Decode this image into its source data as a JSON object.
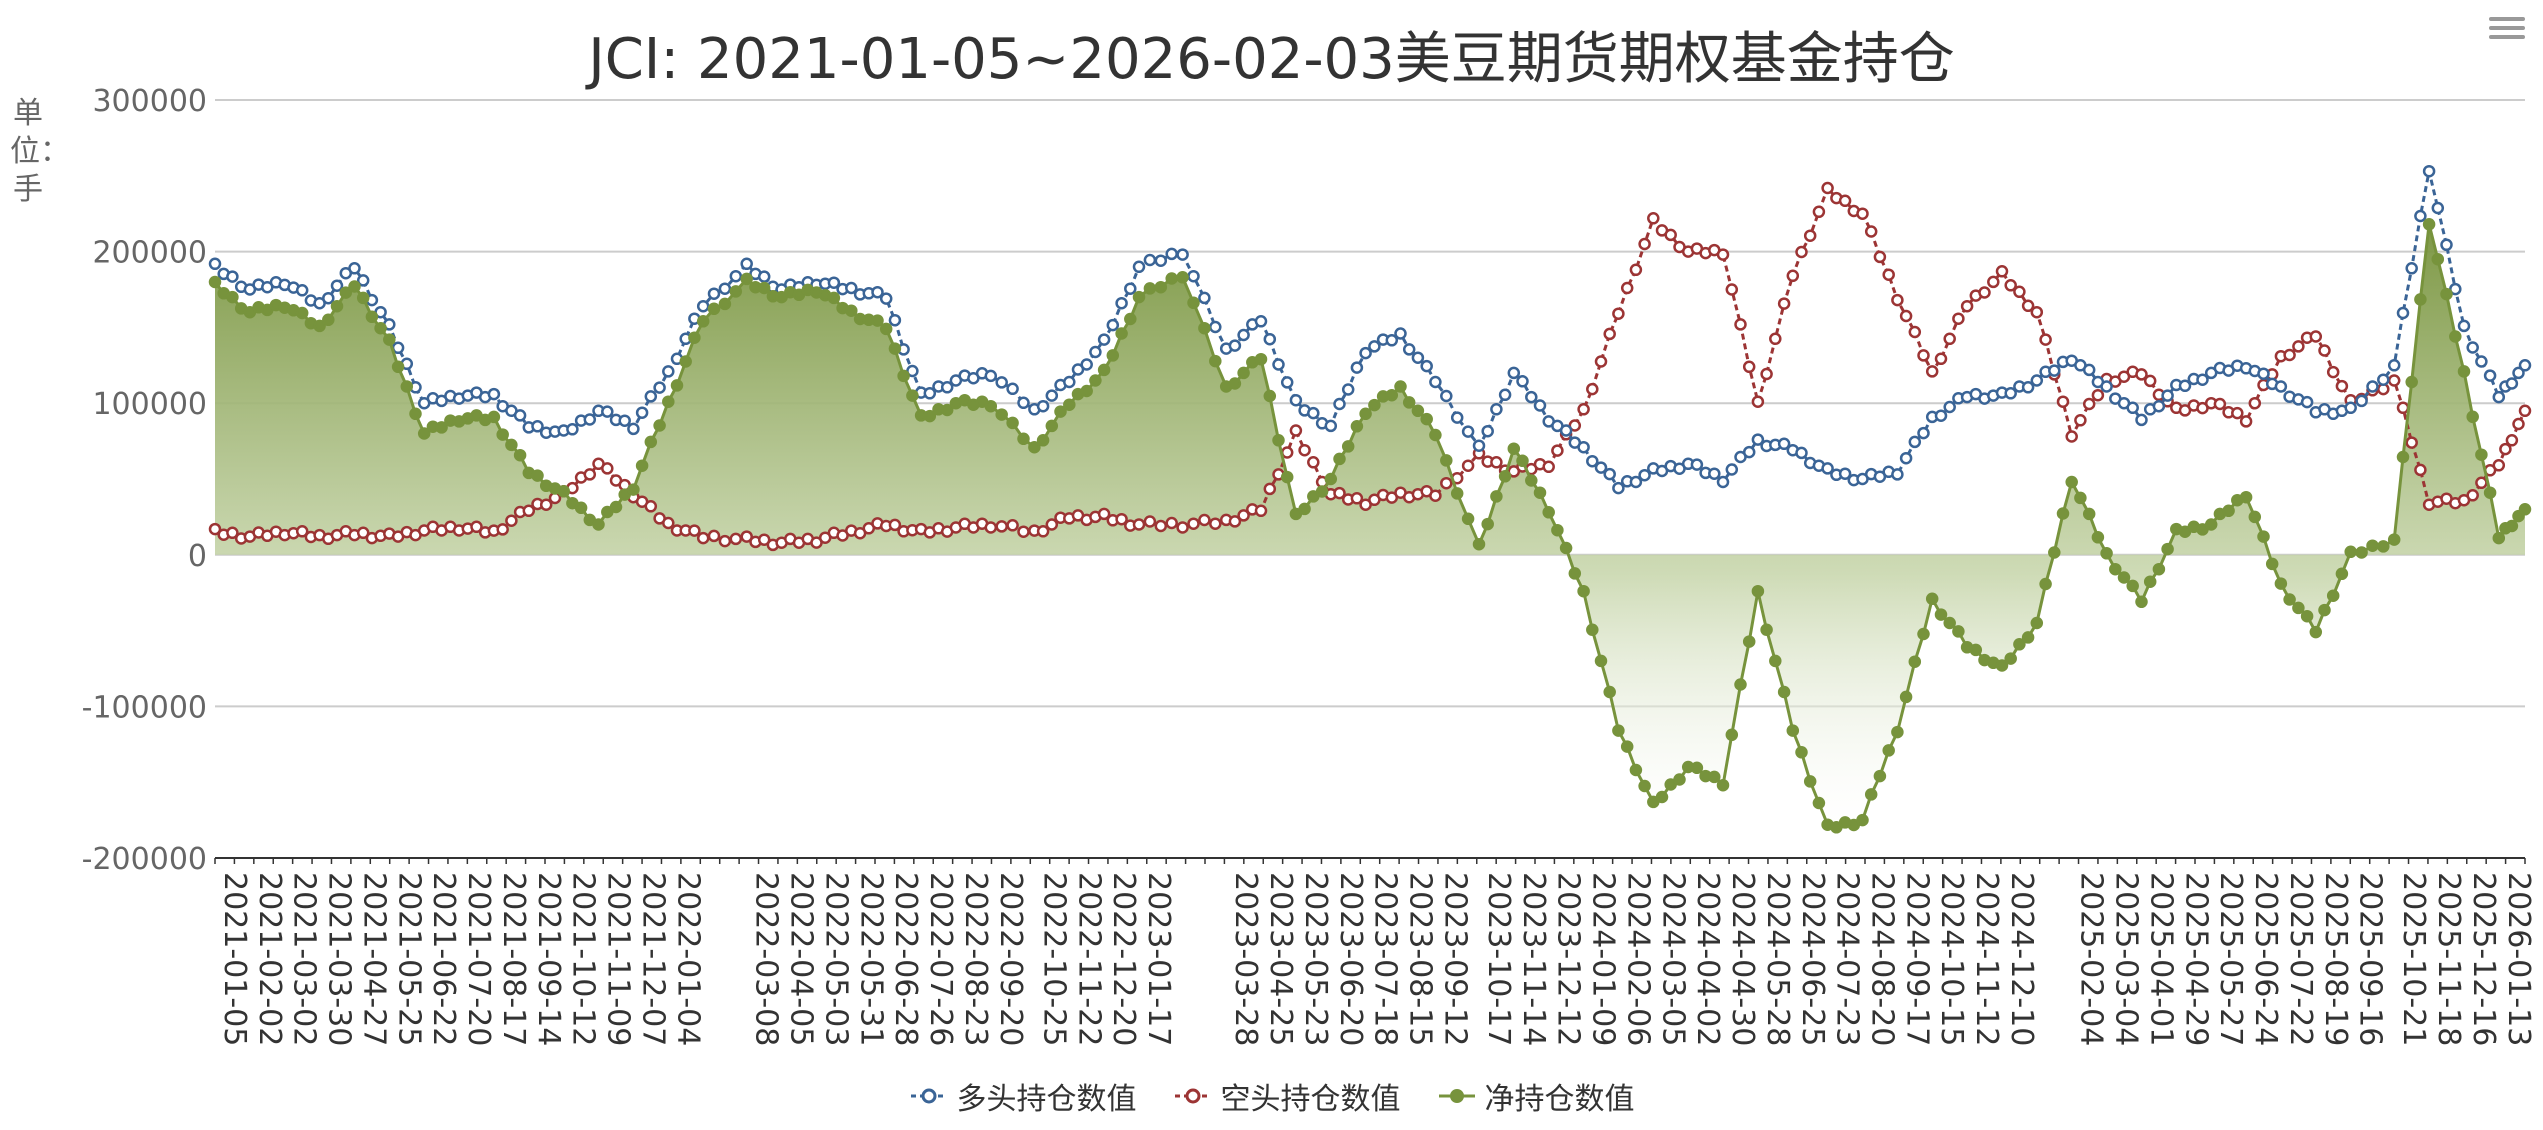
{
  "title": "JCI: 2021-01-05~2026-02-03美豆期货期权基金持仓",
  "y_unit_label": "单位：手",
  "colors": {
    "long": "#3a6496",
    "short": "#9c3434",
    "net": "#77933c",
    "grid": "#cccccc",
    "axis": "#333333",
    "text": "#666666"
  },
  "icons": {
    "menu": "hamburger-menu-icon"
  },
  "chart_data": {
    "type": "line",
    "title": "JCI: 2021-01-05~2026-02-03美豆期货期权基金持仓",
    "ylabel": "单位：手",
    "ylim": [
      -200000,
      300000
    ],
    "yticks": [
      300000,
      200000,
      100000,
      0,
      -100000,
      -200000
    ],
    "ytick_labels": [
      "300000",
      "200000",
      "100000",
      "0",
      "-100000",
      "-200000"
    ],
    "x_range": [
      "2021-01-05",
      "2026-02-03"
    ],
    "x_tick_labels": [
      "2021-01-05",
      "2021-02-02",
      "2021-03-02",
      "2021-03-30",
      "2021-04-27",
      "2021-05-25",
      "2021-06-22",
      "2021-07-20",
      "2021-08-17",
      "2021-09-14",
      "2021-10-12",
      "2021-11-09",
      "2021-12-07",
      "2022-01-04",
      "2022-03-08",
      "2022-04-05",
      "2022-05-03",
      "2022-05-31",
      "2022-06-28",
      "2022-07-26",
      "2022-08-23",
      "2022-09-20",
      "2022-10-25",
      "2022-11-22",
      "2022-12-20",
      "2023-01-17",
      "2023-03-28",
      "2023-04-25",
      "2023-05-23",
      "2023-06-20",
      "2023-07-18",
      "2023-08-15",
      "2023-09-12",
      "2023-10-17",
      "2023-11-14",
      "2023-12-12",
      "2024-01-09",
      "2024-02-06",
      "2024-03-05",
      "2024-04-02",
      "2024-04-30",
      "2024-05-28",
      "2024-06-25",
      "2024-07-23",
      "2024-08-20",
      "2024-09-17",
      "2024-10-15",
      "2024-11-12",
      "2024-12-10",
      "2025-02-04",
      "2025-03-04",
      "2025-04-01",
      "2025-04-29",
      "2025-05-27",
      "2025-06-24",
      "2025-07-22",
      "2025-08-19",
      "2025-09-16",
      "2025-10-21",
      "2025-11-18",
      "2025-12-16",
      "2026-01-13"
    ],
    "series": [
      {
        "name": "多头持仓数值",
        "key": "long",
        "points": [
          [
            "2021-01-05",
            190000
          ],
          [
            "2021-02-02",
            175000
          ],
          [
            "2021-03-02",
            180000
          ],
          [
            "2021-03-30",
            165000
          ],
          [
            "2021-04-27",
            190000
          ],
          [
            "2021-05-25",
            150000
          ],
          [
            "2021-06-22",
            100000
          ],
          [
            "2021-07-20",
            105000
          ],
          [
            "2021-08-17",
            105000
          ],
          [
            "2021-09-14",
            85000
          ],
          [
            "2021-10-12",
            80000
          ],
          [
            "2021-11-09",
            95000
          ],
          [
            "2021-12-07",
            85000
          ],
          [
            "2022-01-04",
            120000
          ],
          [
            "2022-02-01",
            165000
          ],
          [
            "2022-03-08",
            190000
          ],
          [
            "2022-04-05",
            175000
          ],
          [
            "2022-05-03",
            180000
          ],
          [
            "2022-05-31",
            175000
          ],
          [
            "2022-06-28",
            170000
          ],
          [
            "2022-07-26",
            105000
          ],
          [
            "2022-08-23",
            115000
          ],
          [
            "2022-09-20",
            120000
          ],
          [
            "2022-10-25",
            95000
          ],
          [
            "2022-11-22",
            115000
          ],
          [
            "2022-12-20",
            140000
          ],
          [
            "2023-01-17",
            190000
          ],
          [
            "2023-02-21",
            200000
          ],
          [
            "2023-03-28",
            135000
          ],
          [
            "2023-04-25",
            155000
          ],
          [
            "2023-05-23",
            100000
          ],
          [
            "2023-06-20",
            85000
          ],
          [
            "2023-07-18",
            135000
          ],
          [
            "2023-08-15",
            145000
          ],
          [
            "2023-09-12",
            115000
          ],
          [
            "2023-10-17",
            70000
          ],
          [
            "2023-11-14",
            120000
          ],
          [
            "2023-12-12",
            90000
          ],
          [
            "2024-01-09",
            70000
          ],
          [
            "2024-02-06",
            45000
          ],
          [
            "2024-03-05",
            55000
          ],
          [
            "2024-04-02",
            60000
          ],
          [
            "2024-04-30",
            50000
          ],
          [
            "2024-05-28",
            75000
          ],
          [
            "2024-06-25",
            70000
          ],
          [
            "2024-07-23",
            55000
          ],
          [
            "2024-08-20",
            50000
          ],
          [
            "2024-09-17",
            55000
          ],
          [
            "2024-10-15",
            90000
          ],
          [
            "2024-11-12",
            105000
          ],
          [
            "2024-12-10",
            105000
          ],
          [
            "2025-01-07",
            115000
          ],
          [
            "2025-02-04",
            130000
          ],
          [
            "2025-03-04",
            110000
          ],
          [
            "2025-04-01",
            90000
          ],
          [
            "2025-04-29",
            110000
          ],
          [
            "2025-05-27",
            120000
          ],
          [
            "2025-06-24",
            125000
          ],
          [
            "2025-07-22",
            110000
          ],
          [
            "2025-08-19",
            95000
          ],
          [
            "2025-09-16",
            95000
          ],
          [
            "2025-10-21",
            125000
          ],
          [
            "2025-11-18",
            255000
          ],
          [
            "2025-12-16",
            150000
          ],
          [
            "2026-01-13",
            105000
          ],
          [
            "2026-02-03",
            125000
          ]
        ]
      },
      {
        "name": "空头持仓数值",
        "key": "short",
        "points": [
          [
            "2021-01-05",
            15000
          ],
          [
            "2021-02-02",
            12000
          ],
          [
            "2021-03-02",
            15000
          ],
          [
            "2021-03-30",
            12000
          ],
          [
            "2021-04-27",
            14000
          ],
          [
            "2021-05-25",
            12000
          ],
          [
            "2021-06-22",
            16000
          ],
          [
            "2021-07-20",
            18000
          ],
          [
            "2021-08-17",
            15000
          ],
          [
            "2021-09-14",
            30000
          ],
          [
            "2021-10-12",
            40000
          ],
          [
            "2021-11-09",
            60000
          ],
          [
            "2021-12-07",
            40000
          ],
          [
            "2022-01-04",
            20000
          ],
          [
            "2022-02-01",
            12000
          ],
          [
            "2022-03-08",
            10000
          ],
          [
            "2022-04-05",
            8000
          ],
          [
            "2022-05-03",
            10000
          ],
          [
            "2022-05-31",
            15000
          ],
          [
            "2022-06-28",
            20000
          ],
          [
            "2022-07-26",
            15000
          ],
          [
            "2022-08-23",
            18000
          ],
          [
            "2022-09-20",
            20000
          ],
          [
            "2022-10-25",
            15000
          ],
          [
            "2022-11-22",
            25000
          ],
          [
            "2022-12-20",
            25000
          ],
          [
            "2023-01-17",
            20000
          ],
          [
            "2023-02-21",
            20000
          ],
          [
            "2023-03-28",
            22000
          ],
          [
            "2023-04-25",
            30000
          ],
          [
            "2023-05-23",
            80000
          ],
          [
            "2023-06-20",
            40000
          ],
          [
            "2023-07-18",
            35000
          ],
          [
            "2023-08-15",
            40000
          ],
          [
            "2023-09-12",
            40000
          ],
          [
            "2023-10-17",
            65000
          ],
          [
            "2023-11-14",
            55000
          ],
          [
            "2023-12-12",
            60000
          ],
          [
            "2024-01-09",
            95000
          ],
          [
            "2024-02-06",
            160000
          ],
          [
            "2024-03-05",
            220000
          ],
          [
            "2024-04-02",
            200000
          ],
          [
            "2024-04-30",
            200000
          ],
          [
            "2024-05-28",
            100000
          ],
          [
            "2024-06-25",
            185000
          ],
          [
            "2024-07-23",
            240000
          ],
          [
            "2024-08-20",
            225000
          ],
          [
            "2024-09-17",
            170000
          ],
          [
            "2024-10-15",
            120000
          ],
          [
            "2024-11-12",
            165000
          ],
          [
            "2024-12-10",
            185000
          ],
          [
            "2025-01-07",
            160000
          ],
          [
            "2025-02-04",
            80000
          ],
          [
            "2025-03-04",
            115000
          ],
          [
            "2025-04-01",
            120000
          ],
          [
            "2025-04-29",
            95000
          ],
          [
            "2025-05-27",
            100000
          ],
          [
            "2025-06-24",
            90000
          ],
          [
            "2025-07-22",
            130000
          ],
          [
            "2025-08-19",
            145000
          ],
          [
            "2025-09-16",
            100000
          ],
          [
            "2025-10-21",
            115000
          ],
          [
            "2025-11-18",
            35000
          ],
          [
            "2025-12-16",
            35000
          ],
          [
            "2026-01-13",
            60000
          ],
          [
            "2026-02-03",
            95000
          ]
        ]
      },
      {
        "name": "净持仓数值",
        "key": "net",
        "points": [
          [
            "2021-01-05",
            178000
          ],
          [
            "2021-02-02",
            160000
          ],
          [
            "2021-03-02",
            165000
          ],
          [
            "2021-03-30",
            150000
          ],
          [
            "2021-04-27",
            178000
          ],
          [
            "2021-05-25",
            140000
          ],
          [
            "2021-06-22",
            80000
          ],
          [
            "2021-07-20",
            90000
          ],
          [
            "2021-08-17",
            90000
          ],
          [
            "2021-09-14",
            55000
          ],
          [
            "2021-10-12",
            40000
          ],
          [
            "2021-11-09",
            20000
          ],
          [
            "2021-12-07",
            45000
          ],
          [
            "2022-01-04",
            100000
          ],
          [
            "2022-02-01",
            155000
          ],
          [
            "2022-03-08",
            180000
          ],
          [
            "2022-04-05",
            170000
          ],
          [
            "2022-05-03",
            175000
          ],
          [
            "2022-05-31",
            160000
          ],
          [
            "2022-06-28",
            150000
          ],
          [
            "2022-07-26",
            90000
          ],
          [
            "2022-08-23",
            100000
          ],
          [
            "2022-09-20",
            100000
          ],
          [
            "2022-10-25",
            70000
          ],
          [
            "2022-11-22",
            100000
          ],
          [
            "2022-12-20",
            120000
          ],
          [
            "2023-01-17",
            170000
          ],
          [
            "2023-02-21",
            185000
          ],
          [
            "2023-03-28",
            110000
          ],
          [
            "2023-04-25",
            130000
          ],
          [
            "2023-05-23",
            25000
          ],
          [
            "2023-06-20",
            50000
          ],
          [
            "2023-07-18",
            95000
          ],
          [
            "2023-08-15",
            110000
          ],
          [
            "2023-09-12",
            80000
          ],
          [
            "2023-10-17",
            5000
          ],
          [
            "2023-11-14",
            70000
          ],
          [
            "2023-12-12",
            30000
          ],
          [
            "2024-01-09",
            -25000
          ],
          [
            "2024-02-06",
            -115000
          ],
          [
            "2024-03-05",
            -165000
          ],
          [
            "2024-04-02",
            -140000
          ],
          [
            "2024-04-30",
            -150000
          ],
          [
            "2024-05-28",
            -25000
          ],
          [
            "2024-06-25",
            -115000
          ],
          [
            "2024-07-23",
            -180000
          ],
          [
            "2024-08-20",
            -175000
          ],
          [
            "2024-09-17",
            -115000
          ],
          [
            "2024-10-15",
            -30000
          ],
          [
            "2024-11-12",
            -60000
          ],
          [
            "2024-12-10",
            -75000
          ],
          [
            "2025-01-07",
            -45000
          ],
          [
            "2025-02-04",
            50000
          ],
          [
            "2025-03-04",
            0
          ],
          [
            "2025-04-01",
            -30000
          ],
          [
            "2025-04-29",
            15000
          ],
          [
            "2025-05-27",
            20000
          ],
          [
            "2025-06-24",
            40000
          ],
          [
            "2025-07-22",
            -20000
          ],
          [
            "2025-08-19",
            -50000
          ],
          [
            "2025-09-16",
            0
          ],
          [
            "2025-10-21",
            10000
          ],
          [
            "2025-11-18",
            220000
          ],
          [
            "2025-12-16",
            120000
          ],
          [
            "2026-01-13",
            12000
          ],
          [
            "2026-02-03",
            30000
          ]
        ]
      }
    ],
    "area_fill_series": "净持仓数值",
    "grid": true,
    "legend_position": "bottom-center"
  }
}
